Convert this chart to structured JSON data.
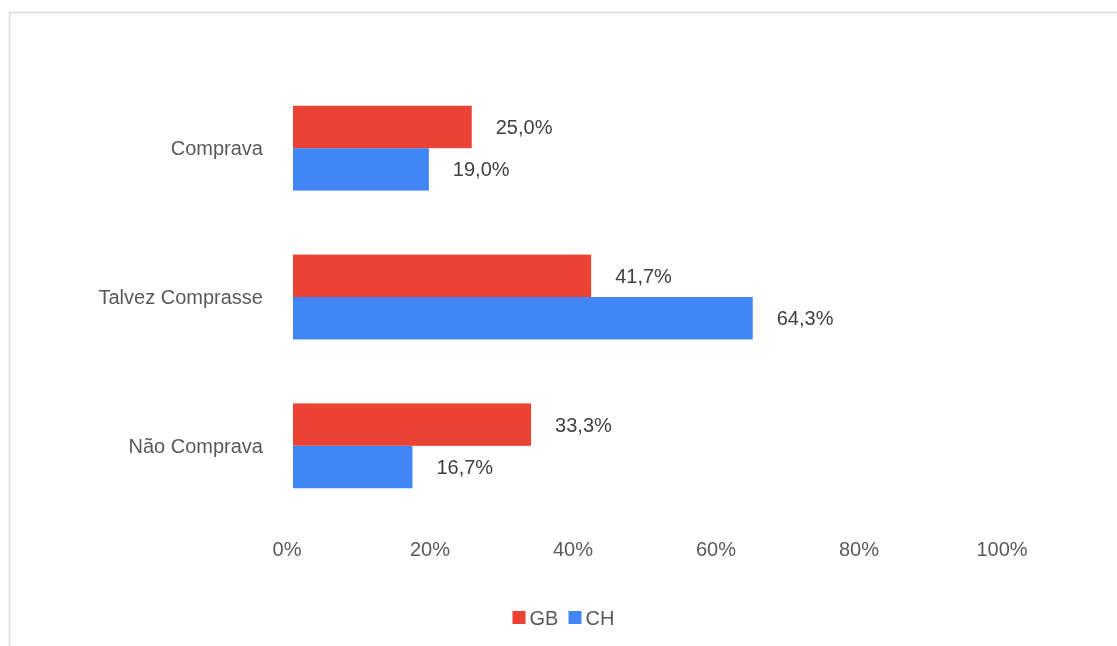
{
  "chart_data": {
    "type": "bar",
    "orientation": "horizontal",
    "categories": [
      "Comprava",
      "Talvez Comprasse",
      "Não Comprava"
    ],
    "series": [
      {
        "name": "GB",
        "color": "#ea4335",
        "values": [
          25.0,
          41.7,
          33.3
        ],
        "value_labels": [
          "25,0%",
          "41,7%",
          "33,3%"
        ]
      },
      {
        "name": "CH",
        "color": "#4285f4",
        "values": [
          19.0,
          64.3,
          16.7
        ],
        "value_labels": [
          "19,0%",
          "64,3%",
          "16,7%"
        ]
      }
    ],
    "xlim": [
      0,
      100
    ],
    "xticks": [
      {
        "value": 0,
        "label": "0%"
      },
      {
        "value": 20,
        "label": "20%"
      },
      {
        "value": 40,
        "label": "40%"
      },
      {
        "value": 60,
        "label": "60%"
      },
      {
        "value": 80,
        "label": "80%"
      },
      {
        "value": 100,
        "label": "100%"
      }
    ],
    "legend": "bottom"
  }
}
